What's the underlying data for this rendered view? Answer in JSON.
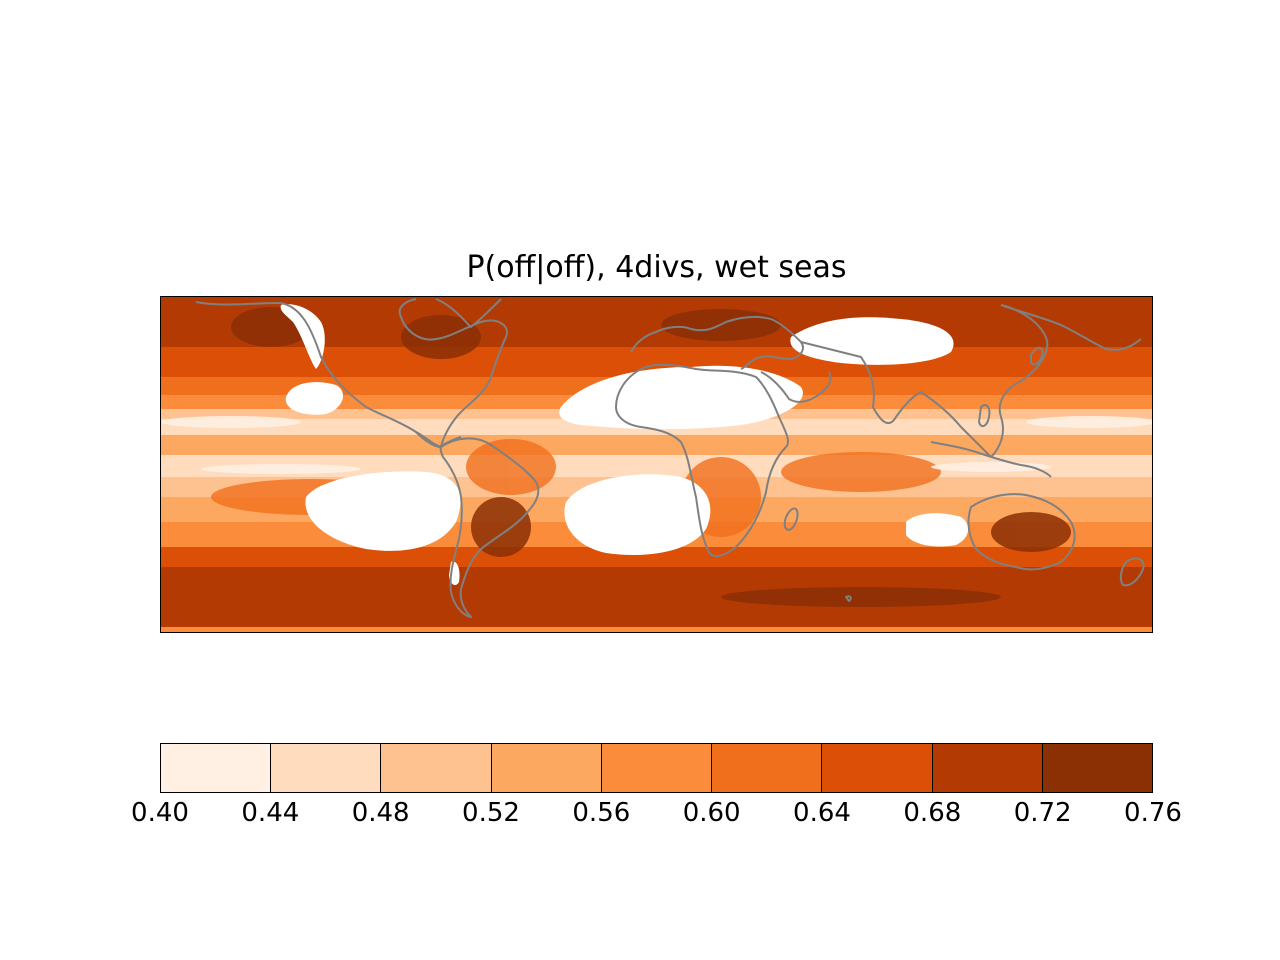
{
  "title": "P(off|off), 4divs, wet seas",
  "colorbar": {
    "ticks": [
      "0.40",
      "0.44",
      "0.48",
      "0.52",
      "0.56",
      "0.60",
      "0.64",
      "0.68",
      "0.72",
      "0.76"
    ],
    "colors": [
      "#fff0e3",
      "#fedcbd",
      "#fdc28f",
      "#fda861",
      "#fb8c3c",
      "#f06f1d",
      "#dc4f07",
      "#b33b03",
      "#8b2f05"
    ]
  },
  "map": {
    "background_color": "#b03a02",
    "dry_region_color": "#ffffff",
    "coastline_color": "#808080"
  }
}
